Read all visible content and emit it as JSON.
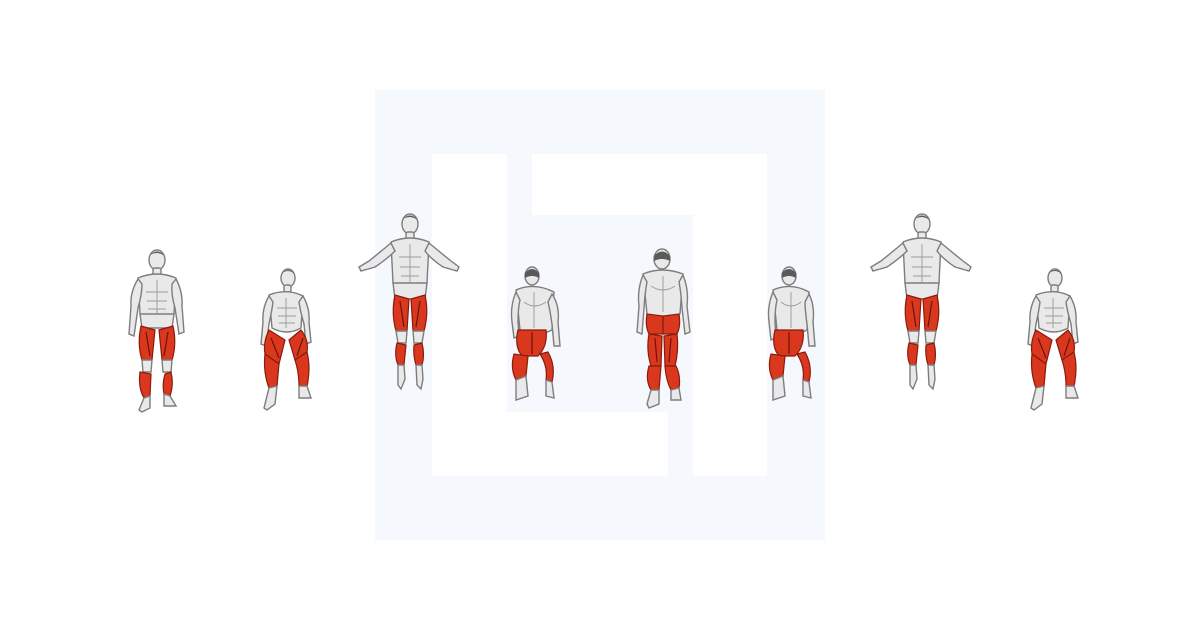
{
  "watermark": {
    "icon": "brand-logo-icon",
    "color": "#f5f8fd"
  },
  "colors": {
    "target_muscle": "#d9381e",
    "target_muscle_shadow": "#a52510",
    "skin": "#e9e9e9"
  },
  "sequence": [
    {
      "view": "front",
      "pose": "standing",
      "highlight": [
        "quadriceps",
        "calves"
      ]
    },
    {
      "view": "front-angle",
      "pose": "squat",
      "highlight": [
        "quadriceps",
        "calves"
      ]
    },
    {
      "view": "front",
      "pose": "jump-arms-out",
      "highlight": [
        "quadriceps",
        "calves"
      ]
    },
    {
      "view": "back-angle",
      "pose": "squat",
      "highlight": [
        "glutes",
        "hamstrings",
        "calves"
      ]
    },
    {
      "view": "back",
      "pose": "standing",
      "highlight": [
        "glutes",
        "hamstrings",
        "calves"
      ]
    },
    {
      "view": "back-angle",
      "pose": "squat",
      "highlight": [
        "glutes",
        "hamstrings",
        "calves"
      ]
    },
    {
      "view": "front",
      "pose": "jump-arms-out",
      "highlight": [
        "quadriceps",
        "calves"
      ]
    },
    {
      "view": "front-angle",
      "pose": "squat",
      "highlight": [
        "quadriceps",
        "calves"
      ]
    }
  ]
}
